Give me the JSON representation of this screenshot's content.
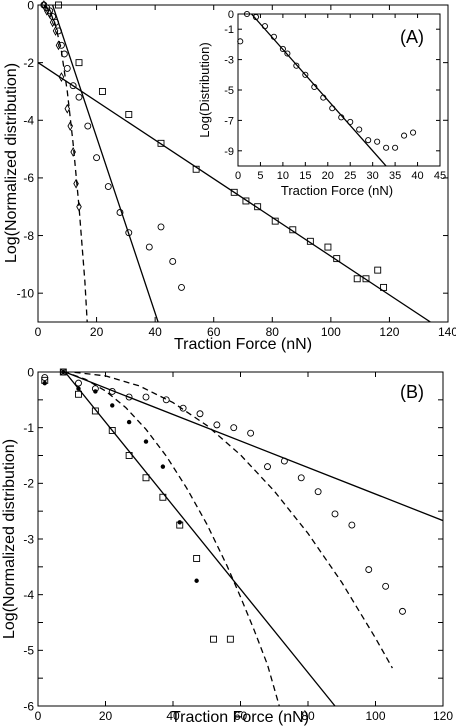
{
  "chart_data": [
    {
      "id": "A",
      "type": "scatter",
      "panel_label": "(A)",
      "xlabel": "Traction Force (nN)",
      "ylabel": "Log(Normalized distribution)",
      "xlim": [
        0,
        140
      ],
      "ylim": [
        -11,
        0
      ],
      "xticks": [
        0,
        20,
        40,
        60,
        80,
        100,
        120,
        140
      ],
      "yticks": [
        0,
        -2,
        -4,
        -6,
        -8,
        -10
      ],
      "series": [
        {
          "marker": "circle",
          "points": [
            [
              2,
              0
            ],
            [
              3,
              -0.1
            ],
            [
              4,
              -0.2
            ],
            [
              5,
              -0.4
            ],
            [
              6,
              -0.6
            ],
            [
              7,
              -0.9
            ],
            [
              8,
              -1.4
            ],
            [
              9,
              -1.7
            ],
            [
              10,
              -2.2
            ],
            [
              12,
              -2.8
            ],
            [
              14,
              -3.2
            ],
            [
              17,
              -4.2
            ],
            [
              20,
              -5.3
            ],
            [
              24,
              -6.3
            ],
            [
              28,
              -7.2
            ],
            [
              31,
              -7.9
            ],
            [
              38,
              -8.4
            ],
            [
              42,
              -7.7
            ],
            [
              46,
              -8.9
            ],
            [
              49,
              -9.8
            ]
          ]
        },
        {
          "marker": "diamond",
          "points": [
            [
              2,
              0
            ],
            [
              3,
              -0.2
            ],
            [
              4,
              -0.3
            ],
            [
              5,
              -0.6
            ],
            [
              6,
              -0.9
            ],
            [
              7,
              -1.4
            ],
            [
              8,
              -2.5
            ],
            [
              10,
              -3.6
            ],
            [
              11,
              -4.2
            ],
            [
              12,
              -5.1
            ],
            [
              13,
              -6.2
            ],
            [
              14,
              -7.0
            ]
          ]
        },
        {
          "marker": "square",
          "points": [
            [
              7,
              0
            ],
            [
              14,
              -2.0
            ],
            [
              22,
              -3.0
            ],
            [
              31,
              -3.8
            ],
            [
              42,
              -4.8
            ],
            [
              54,
              -5.7
            ],
            [
              67,
              -6.5
            ],
            [
              71,
              -6.8
            ],
            [
              75,
              -7.0
            ],
            [
              81,
              -7.5
            ],
            [
              87,
              -7.8
            ],
            [
              93,
              -8.2
            ],
            [
              99,
              -8.4
            ],
            [
              102,
              -8.8
            ],
            [
              109,
              -9.5
            ],
            [
              112,
              -9.5
            ],
            [
              116,
              -9.2
            ],
            [
              118,
              -9.8
            ]
          ]
        }
      ],
      "fits": [
        {
          "style": "solid",
          "points": [
            [
              0,
              -2.0
            ],
            [
              134,
              -11.0
            ]
          ]
        },
        {
          "style": "solid",
          "points": [
            [
              5,
              0
            ],
            [
              41,
              -11.0
            ]
          ]
        },
        {
          "style": "dashed",
          "points": [
            [
              2,
              0
            ],
            [
              4,
              -0.2
            ],
            [
              6,
              -0.7
            ],
            [
              8,
              -1.6
            ],
            [
              10,
              -3.0
            ],
            [
              12,
              -4.8
            ],
            [
              14,
              -7.0
            ],
            [
              16,
              -9.6
            ],
            [
              16.8,
              -11.0
            ]
          ]
        }
      ],
      "inset": {
        "panel_label": "(A)",
        "xlabel": "Traction Force (nN)",
        "ylabel": "Log(Distribution)",
        "xlim": [
          0,
          45
        ],
        "ylim": [
          -10,
          0
        ],
        "xticks": [
          0,
          5,
          10,
          15,
          20,
          25,
          30,
          35,
          40,
          45
        ],
        "yticks": [
          0,
          -1,
          -3,
          -5,
          -7,
          -9
        ],
        "series": [
          {
            "marker": "circle",
            "points": [
              [
                0.5,
                -1.8
              ],
              [
                2,
                0
              ],
              [
                4,
                -0.2
              ],
              [
                6,
                -0.8
              ],
              [
                8,
                -1.5
              ],
              [
                10,
                -2.3
              ],
              [
                11,
                -2.6
              ],
              [
                13,
                -3.4
              ],
              [
                15,
                -4.0
              ],
              [
                17,
                -4.8
              ],
              [
                19,
                -5.5
              ],
              [
                21,
                -6.2
              ],
              [
                23,
                -6.8
              ],
              [
                25,
                -7.1
              ],
              [
                27,
                -7.6
              ],
              [
                29,
                -8.3
              ],
              [
                31,
                -8.4
              ],
              [
                33,
                -8.8
              ],
              [
                35,
                -8.8
              ],
              [
                37,
                -8.0
              ],
              [
                39,
                -7.8
              ]
            ]
          }
        ],
        "fits": [
          {
            "style": "solid",
            "points": [
              [
                3,
                0
              ],
              [
                33,
                -10
              ]
            ]
          }
        ]
      }
    },
    {
      "id": "B",
      "type": "scatter",
      "panel_label": "(B)",
      "xlabel": "Traction Force (nN)",
      "ylabel": "Log(Normalized distribution)",
      "xlim": [
        0,
        120
      ],
      "ylim": [
        -6,
        0
      ],
      "xticks": [
        0,
        20,
        40,
        60,
        80,
        100,
        120
      ],
      "yticks": [
        0,
        -0.5,
        -1,
        -1.5,
        -2,
        -2.5,
        -3,
        -3.5,
        -4,
        -4.5,
        -5,
        -5.5,
        -6
      ],
      "ytick_labels": [
        "0",
        "",
        "-1",
        "",
        "-2",
        "",
        "-3",
        "",
        "-4",
        "",
        "-5",
        "",
        "-6"
      ],
      "series": [
        {
          "marker": "circle",
          "points": [
            [
              2,
              -0.1
            ],
            [
              7.5,
              0
            ],
            [
              12,
              -0.2
            ],
            [
              17,
              -0.3
            ],
            [
              22,
              -0.35
            ],
            [
              27,
              -0.45
            ],
            [
              32,
              -0.45
            ],
            [
              38,
              -0.5
            ],
            [
              43,
              -0.65
            ],
            [
              48,
              -0.75
            ],
            [
              53,
              -0.95
            ],
            [
              58,
              -1.0
            ],
            [
              63,
              -1.1
            ],
            [
              68,
              -1.7
            ],
            [
              73,
              -1.6
            ],
            [
              78,
              -1.9
            ],
            [
              83,
              -2.15
            ],
            [
              88,
              -2.55
            ],
            [
              93,
              -2.75
            ],
            [
              98,
              -3.55
            ],
            [
              103,
              -3.85
            ],
            [
              108,
              -4.3
            ]
          ]
        },
        {
          "marker": "dot",
          "points": [
            [
              2,
              -0.2
            ],
            [
              7.5,
              0
            ],
            [
              12,
              -0.3
            ],
            [
              17,
              -0.35
            ],
            [
              22,
              -0.6
            ],
            [
              27,
              -0.9
            ],
            [
              32,
              -1.25
            ],
            [
              37,
              -1.7
            ],
            [
              42,
              -2.7
            ],
            [
              47,
              -3.75
            ]
          ]
        },
        {
          "marker": "square",
          "points": [
            [
              2,
              -0.15
            ],
            [
              7.5,
              0
            ],
            [
              12,
              -0.4
            ],
            [
              17,
              -0.7
            ],
            [
              22,
              -1.05
            ],
            [
              27,
              -1.5
            ],
            [
              32,
              -1.9
            ],
            [
              37,
              -2.25
            ],
            [
              42,
              -2.75
            ],
            [
              47,
              -3.35
            ],
            [
              52,
              -4.8
            ],
            [
              57,
              -4.8
            ]
          ]
        }
      ],
      "fits": [
        {
          "style": "solid",
          "points": [
            [
              8,
              0
            ],
            [
              120,
              -2.67
            ]
          ]
        },
        {
          "style": "solid",
          "points": [
            [
              8,
              0
            ],
            [
              88,
              -6.0
            ]
          ]
        },
        {
          "style": "dashed",
          "points": [
            [
              2,
              0.15
            ],
            [
              8,
              0
            ],
            [
              14,
              -0.13
            ],
            [
              20,
              -0.34
            ],
            [
              26,
              -0.64
            ],
            [
              32,
              -1.03
            ],
            [
              38,
              -1.51
            ],
            [
              44,
              -2.08
            ],
            [
              50,
              -2.73
            ],
            [
              56,
              -3.48
            ],
            [
              60,
              -4.04
            ],
            [
              64,
              -4.63
            ],
            [
              68,
              -5.26
            ],
            [
              71.5,
              -6.0
            ]
          ]
        },
        {
          "style": "dashed",
          "points": [
            [
              2,
              0.06
            ],
            [
              10,
              0
            ],
            [
              20,
              -0.07
            ],
            [
              30,
              -0.25
            ],
            [
              40,
              -0.55
            ],
            [
              50,
              -0.96
            ],
            [
              60,
              -1.49
            ],
            [
              70,
              -2.14
            ],
            [
              80,
              -2.9
            ],
            [
              90,
              -3.78
            ],
            [
              100,
              -4.78
            ],
            [
              105,
              -5.32
            ]
          ]
        }
      ]
    }
  ]
}
